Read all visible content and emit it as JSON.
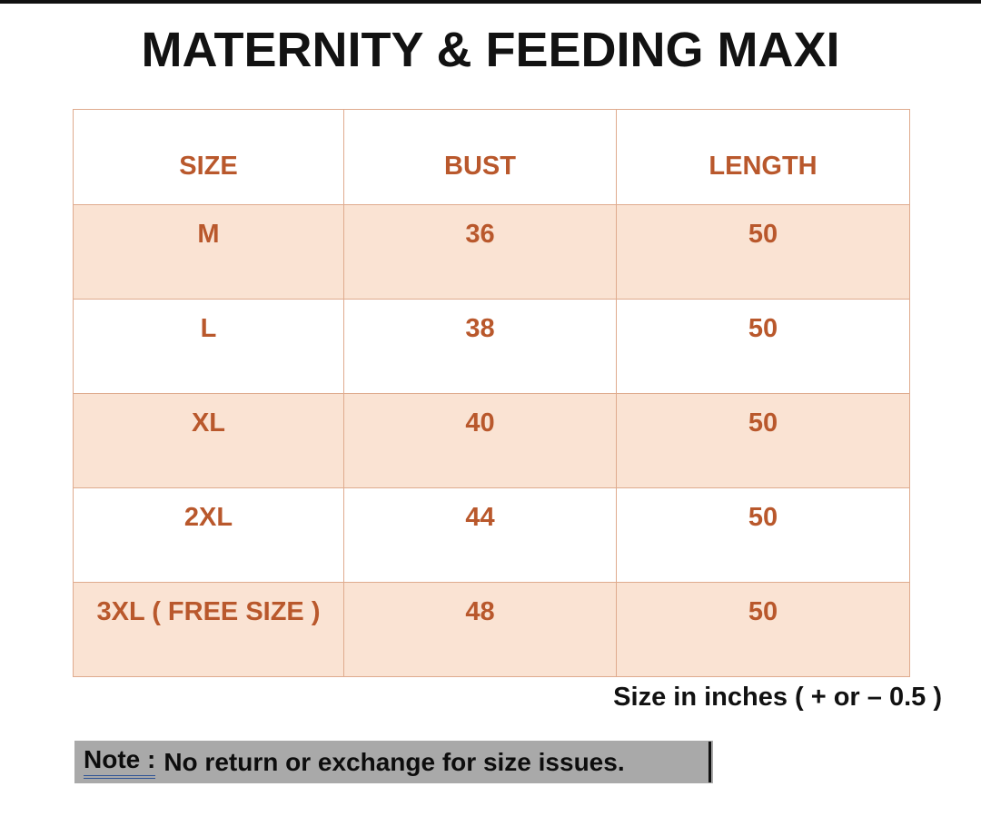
{
  "title": "MATERNITY & FEEDING MAXI",
  "size_chart": {
    "columns": [
      "SIZE",
      "BUST",
      "LENGTH"
    ],
    "rows": [
      {
        "size": "M",
        "bust": "36",
        "length": "50"
      },
      {
        "size": "L",
        "bust": "38",
        "length": "50"
      },
      {
        "size": "XL",
        "bust": "40",
        "length": "50"
      },
      {
        "size": "2XL",
        "bust": "44",
        "length": "50"
      },
      {
        "size": "3XL ( FREE SIZE )",
        "bust": "48",
        "length": "50"
      }
    ],
    "unit_note": "Size in inches ( + or  – 0.5 )"
  },
  "footer_note": {
    "label": "Note :",
    "text": "No return or exchange for size issues."
  },
  "colors": {
    "accent_text": "#b9582c",
    "row_highlight": "#fae3d3",
    "table_border": "#dfab8e",
    "note_highlight": "#a9a9a9",
    "note_underline": "#2e5395"
  }
}
